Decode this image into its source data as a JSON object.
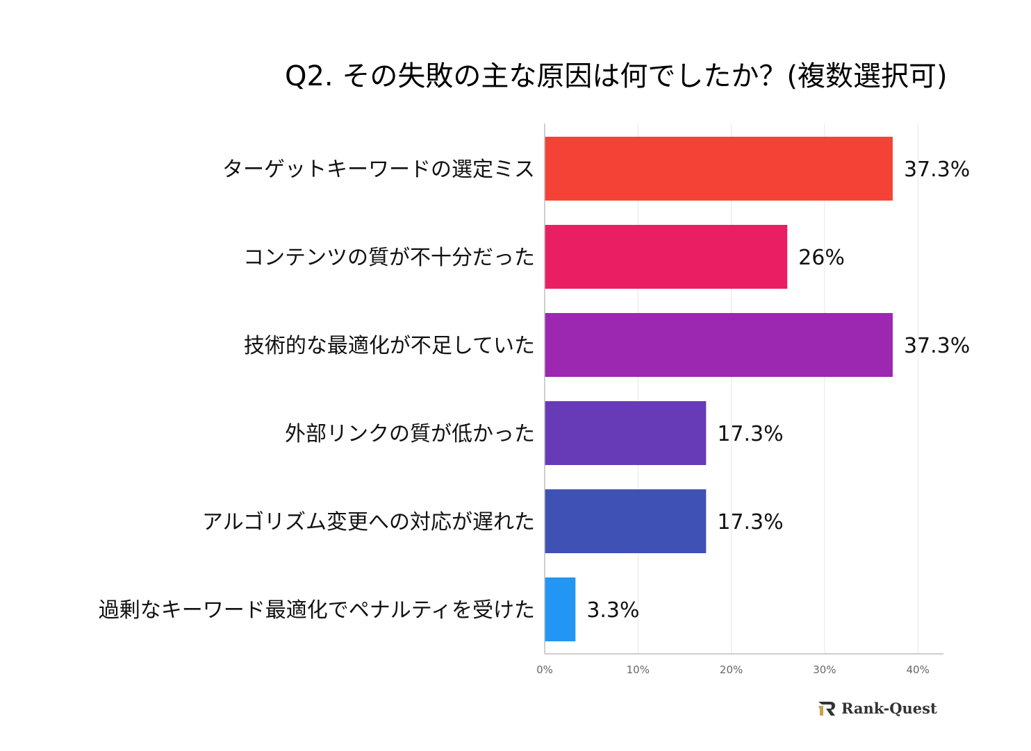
{
  "chart_data": {
    "type": "bar",
    "orientation": "horizontal",
    "title": "Q2. その失敗の主な原因は何でしたか？(複数選択可)",
    "categories": [
      "ターゲットキーワードの選定ミス",
      "コンテンツの質が不十分だった",
      "技術的な最適化が不足していた",
      "外部リンクの質が低かった",
      "アルゴリズム変更への対応が遅れた",
      "過剰なキーワード最適化でペナルティを受けた"
    ],
    "values": [
      37.3,
      26,
      37.3,
      17.3,
      17.3,
      3.3
    ],
    "value_labels": [
      "37.3%",
      "26%",
      "37.3%",
      "17.3%",
      "17.3%",
      "3.3%"
    ],
    "colors": [
      "#f44336",
      "#e91e63",
      "#9c27b0",
      "#673ab7",
      "#3f51b5",
      "#2196f3"
    ],
    "xlim": [
      0,
      43
    ],
    "xticks": [
      0,
      10,
      20,
      30,
      40
    ],
    "xtick_labels": [
      "0%",
      "10%",
      "20%",
      "30%",
      "40%"
    ],
    "grid": true,
    "legend": "none"
  },
  "logo": {
    "text": "Rank-Quest",
    "icon": "rank-quest-logo-icon"
  }
}
